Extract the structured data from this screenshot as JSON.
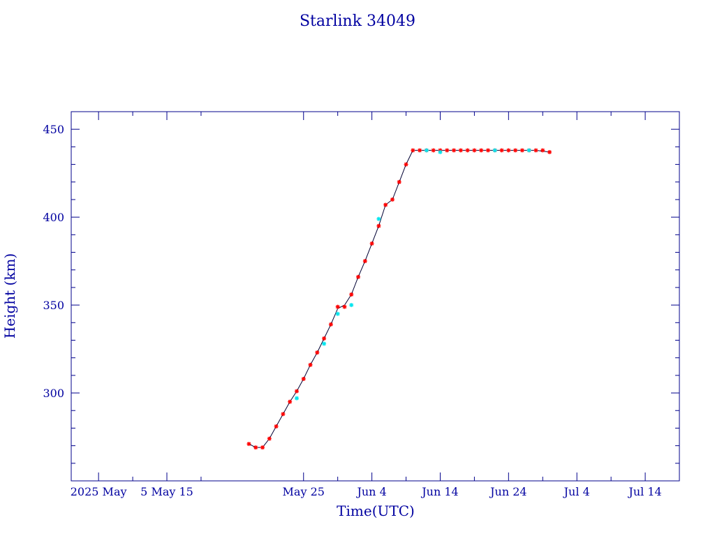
{
  "chart_data": {
    "type": "line",
    "title": "Starlink 34049",
    "xlabel": "Time(UTC)",
    "ylabel": "Height (km)",
    "xlim": [
      "2025-04-21",
      "2025-07-19"
    ],
    "ylim": [
      250,
      460
    ],
    "x_ticks": [
      {
        "date": "2025-04-25",
        "label": "2025 May"
      },
      {
        "date": "2025-05-05",
        "label": "5 May 15"
      },
      {
        "date": "2025-05-25",
        "label": "May 25"
      },
      {
        "date": "2025-06-04",
        "label": "Jun  4"
      },
      {
        "date": "2025-06-14",
        "label": "Jun 14"
      },
      {
        "date": "2025-06-24",
        "label": "Jun 24"
      },
      {
        "date": "2025-07-04",
        "label": "Jul  4"
      },
      {
        "date": "2025-07-14",
        "label": "Jul 14"
      }
    ],
    "y_ticks": [
      300,
      350,
      400,
      450
    ],
    "grid": false,
    "series": [
      {
        "color": "#000033",
        "x": [
          "2025-05-17",
          "2025-05-18",
          "2025-05-19",
          "2025-05-20",
          "2025-05-21",
          "2025-05-22",
          "2025-05-23",
          "2025-05-24",
          "2025-05-25",
          "2025-05-26",
          "2025-05-27",
          "2025-05-28",
          "2025-05-29",
          "2025-05-30",
          "2025-05-31",
          "2025-06-01",
          "2025-06-02",
          "2025-06-03",
          "2025-06-04",
          "2025-06-05",
          "2025-06-06",
          "2025-06-07",
          "2025-06-08",
          "2025-06-09",
          "2025-06-10",
          "2025-06-12",
          "2025-06-14",
          "2025-06-16",
          "2025-06-18",
          "2025-06-20",
          "2025-06-22",
          "2025-06-24",
          "2025-06-26",
          "2025-06-28",
          "2025-06-30"
        ],
        "y": [
          271,
          269,
          269,
          274,
          281,
          288,
          295,
          301,
          308,
          316,
          323,
          331,
          339,
          348,
          350,
          356,
          366,
          375,
          385,
          395,
          407,
          410,
          420,
          430,
          438,
          438,
          438,
          438,
          438,
          438,
          438,
          438,
          438,
          438,
          437
        ]
      }
    ],
    "markers": [
      {
        "color": "#ff0000",
        "symbol": "asterisk",
        "x": [
          "2025-05-17",
          "2025-05-18",
          "2025-05-19",
          "2025-05-20",
          "2025-05-21",
          "2025-05-22",
          "2025-05-23",
          "2025-05-24",
          "2025-05-25",
          "2025-05-26",
          "2025-05-27",
          "2025-05-28",
          "2025-05-29",
          "2025-05-30",
          "2025-05-31",
          "2025-06-01",
          "2025-06-02",
          "2025-06-03",
          "2025-06-04",
          "2025-06-05",
          "2025-06-06",
          "2025-06-07",
          "2025-06-08",
          "2025-06-09",
          "2025-06-10",
          "2025-06-11",
          "2025-06-12",
          "2025-06-13",
          "2025-06-14",
          "2025-06-15",
          "2025-06-16",
          "2025-06-17",
          "2025-06-18",
          "2025-06-19",
          "2025-06-20",
          "2025-06-21",
          "2025-06-22",
          "2025-06-23",
          "2025-06-24",
          "2025-06-25",
          "2025-06-26",
          "2025-06-27",
          "2025-06-28",
          "2025-06-29",
          "2025-06-30"
        ],
        "y": [
          271,
          269,
          269,
          274,
          281,
          288,
          295,
          301,
          308,
          316,
          323,
          331,
          339,
          349,
          349,
          356,
          366,
          375,
          385,
          395,
          407,
          410,
          420,
          430,
          438,
          438,
          438,
          438,
          438,
          438,
          438,
          438,
          438,
          438,
          438,
          438,
          438,
          438,
          438,
          438,
          438,
          438,
          438,
          438,
          437
        ]
      },
      {
        "color": "#00e5ee",
        "symbol": "asterisk",
        "x": [
          "2025-05-24",
          "2025-05-28",
          "2025-05-30",
          "2025-06-01",
          "2025-06-05",
          "2025-06-12",
          "2025-06-14",
          "2025-06-22",
          "2025-06-27"
        ],
        "y": [
          297,
          328,
          345,
          350,
          399,
          438,
          437,
          438,
          438
        ]
      }
    ]
  }
}
